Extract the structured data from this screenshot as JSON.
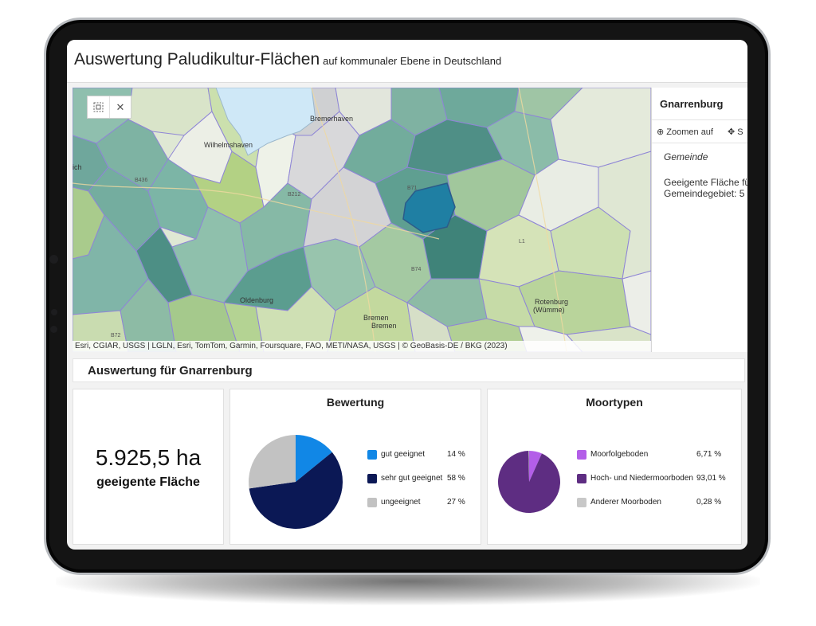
{
  "header": {
    "title": "Auswertung Paludikultur-Flächen",
    "subtitle": "auf kommunaler Ebene in Deutschland"
  },
  "map": {
    "labels": {
      "wilhelmshaven": "Wilhelmshaven",
      "bremerhaven": "Bremerhaven",
      "oldenburg": "Oldenburg",
      "bremen_upper": "Bremen",
      "bremen_lower": "Bremen",
      "rotenburg": "Rotenburg",
      "wumme": "(Wümme)",
      "ich": "ich",
      "b436": "B436",
      "b212": "B212",
      "b71": "B71",
      "l1": "L1",
      "b74": "B74",
      "b72": "B72"
    },
    "tools": {
      "select_icon": "grid-select-icon",
      "close_icon": "close-icon"
    },
    "attribution": "Esri, CGIAR, USGS | LGLN, Esri, TomTom, Garmin, Foursquare, FAO, METI/NASA, USGS | © GeoBasis-DE / BKG (2023)"
  },
  "popup": {
    "title": "Gnarrenburg",
    "zoom_label": "Zoomen auf",
    "move_label": "S",
    "field_gemeinde": "Gemeinde",
    "desc_line1": "Geeigente Fläche fü",
    "desc_line2": "Gemeindegebiet: 5"
  },
  "section": {
    "title": "Auswertung für Gnarrenburg"
  },
  "kpi": {
    "value": "5.925,5 ha",
    "label": "geeigente Fläche"
  },
  "chart_data": [
    {
      "type": "pie",
      "title": "Bewertung",
      "categories": [
        "gut geeignet",
        "sehr gut geeignet",
        "ungeeignet"
      ],
      "values": [
        14,
        58,
        27
      ],
      "value_labels": [
        "14 %",
        "58 %",
        "27 %"
      ],
      "colors": [
        "#1187e6",
        "#0b1855",
        "#c2c2c2"
      ],
      "legend": "right"
    },
    {
      "type": "pie",
      "title": "Moortypen",
      "categories": [
        "Moorfolgeboden",
        "Hoch- und Niedermoorboden",
        "Anderer Moorboden"
      ],
      "values": [
        6.71,
        93.01,
        0.28
      ],
      "value_labels": [
        "6,71 %",
        "93,01 %",
        "0,28 %"
      ],
      "colors": [
        "#b35ee8",
        "#5e2d82",
        "#c8c8c8"
      ],
      "legend": "right"
    }
  ]
}
